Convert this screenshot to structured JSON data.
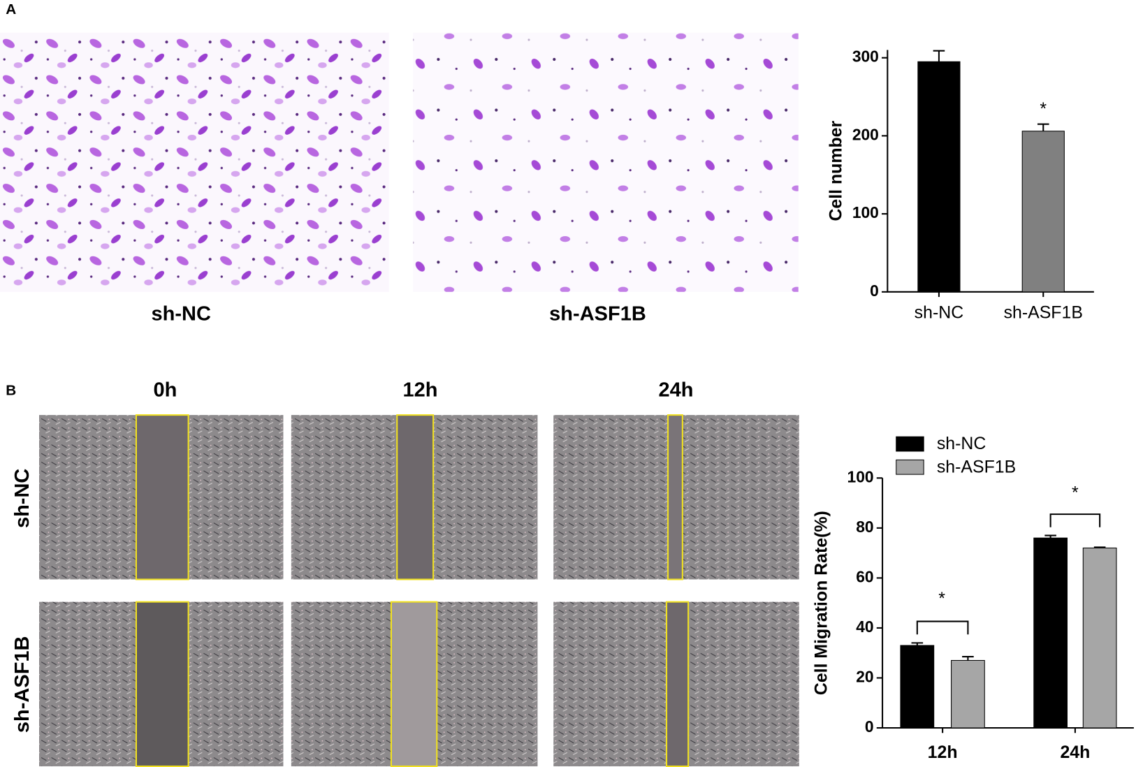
{
  "panels": {
    "A": {
      "label": "A",
      "captions": [
        "sh-NC",
        "sh-ASF1B"
      ]
    },
    "B": {
      "label": "B",
      "columns": [
        "0h",
        "12h",
        "24h"
      ],
      "rows": [
        "sh-NC",
        "sh-ASF1B"
      ]
    }
  },
  "chart_data": [
    {
      "type": "bar",
      "y_label": "Cell number",
      "categories": [
        "sh-NC",
        "sh-ASF1B"
      ],
      "values": [
        295,
        206
      ],
      "errors": [
        14,
        9
      ],
      "colors": [
        "#000000",
        "#808080"
      ],
      "ylim": [
        0,
        310
      ],
      "yticks": [
        0,
        100,
        200,
        300
      ],
      "annotations": [
        "*"
      ]
    },
    {
      "type": "grouped-bar",
      "y_label": "Cell Migration Rate(%)",
      "categories": [
        "12h",
        "24h"
      ],
      "series": [
        {
          "name": "sh-NC",
          "color": "#000000",
          "values": [
            33,
            76
          ],
          "errors": [
            1,
            1
          ]
        },
        {
          "name": "sh-ASF1B",
          "color": "#a6a6a6",
          "values": [
            27,
            72
          ],
          "errors": [
            1.5,
            0.3
          ]
        }
      ],
      "ylim": [
        0,
        100
      ],
      "yticks": [
        0,
        20,
        40,
        60,
        80,
        100
      ],
      "legend": "top-left",
      "annotations": [
        "*",
        "*"
      ]
    }
  ]
}
